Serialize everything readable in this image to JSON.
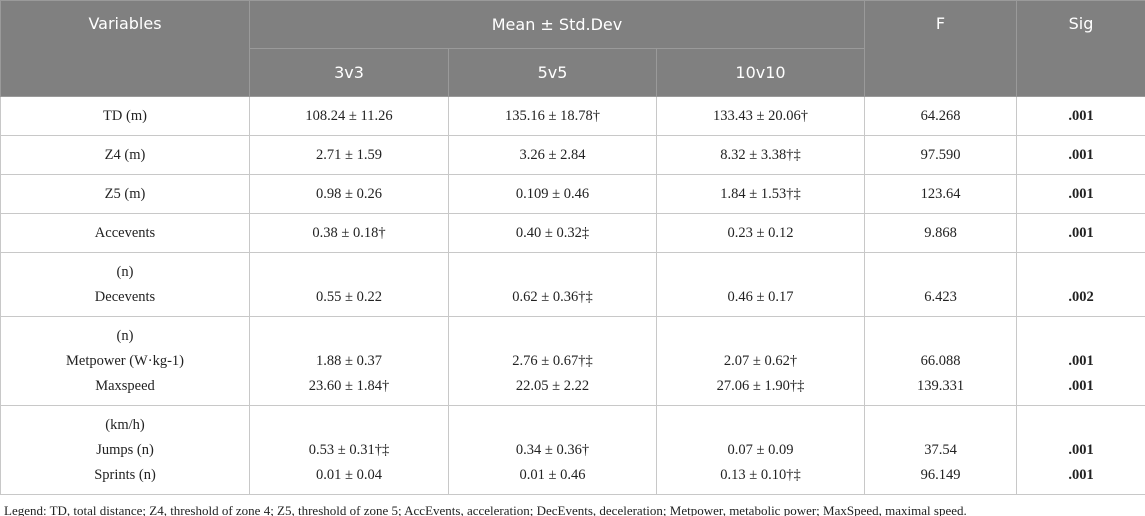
{
  "table": {
    "header": {
      "variables": "Variables",
      "group": "Mean ± Std.Dev",
      "f": "F",
      "sig": "Sig",
      "subgroups": [
        "3v3",
        "5v5",
        "10v10"
      ]
    },
    "rows": [
      [
        [
          "TD (m)"
        ],
        [
          "108.24 ± 11.26"
        ],
        [
          "135.16 ± 18.78†"
        ],
        [
          "133.43 ± 20.06†"
        ],
        [
          "64.268"
        ],
        [
          ".001"
        ]
      ],
      [
        [
          "Z4 (m)"
        ],
        [
          "2.71 ± 1.59"
        ],
        [
          "3.26 ± 2.84"
        ],
        [
          "8.32 ± 3.38†‡"
        ],
        [
          "97.590"
        ],
        [
          ".001"
        ]
      ],
      [
        [
          "Z5 (m)"
        ],
        [
          "0.98 ± 0.26"
        ],
        [
          "0.109 ± 0.46"
        ],
        [
          "1.84 ± 1.53†‡"
        ],
        [
          "123.64"
        ],
        [
          ".001"
        ]
      ],
      [
        [
          "Accevents"
        ],
        [
          "0.38 ± 0.18†"
        ],
        [
          "0.40 ± 0.32‡"
        ],
        [
          "0.23 ± 0.12"
        ],
        [
          "9.868"
        ],
        [
          ".001"
        ]
      ],
      [
        [
          "(n)",
          "Decevents"
        ],
        [
          "0.55 ± 0.22"
        ],
        [
          "0.62 ± 0.36†‡"
        ],
        [
          "0.46 ± 0.17"
        ],
        [
          "6.423"
        ],
        [
          ".002"
        ]
      ],
      [
        [
          "(n)",
          "Metpower (W·kg-1)",
          "Maxspeed"
        ],
        [
          "1.88 ± 0.37",
          "23.60 ± 1.84†"
        ],
        [
          "2.76 ± 0.67†‡",
          "22.05 ± 2.22"
        ],
        [
          "2.07 ± 0.62†",
          "27.06 ± 1.90†‡"
        ],
        [
          "66.088",
          "139.331"
        ],
        [
          ".001",
          ".001"
        ]
      ],
      [
        [
          "(km/h)",
          "Jumps (n)",
          "Sprints (n)"
        ],
        [
          "0.53 ± 0.31†‡",
          "0.01 ± 0.04"
        ],
        [
          "0.34 ± 0.36†",
          "0.01 ± 0.46"
        ],
        [
          "0.07 ± 0.09",
          "0.13 ± 0.10†‡"
        ],
        [
          "37.54",
          "96.149"
        ],
        [
          ".001",
          ".001"
        ]
      ]
    ]
  },
  "legend": "Legend: TD, total distance; Z4, threshold of zone 4; Z5, threshold of zone 5; AccEvents, acceleration; DecEvents, deceleration; Metpower, metabolic power; MaxSpeed, maximal speed."
}
